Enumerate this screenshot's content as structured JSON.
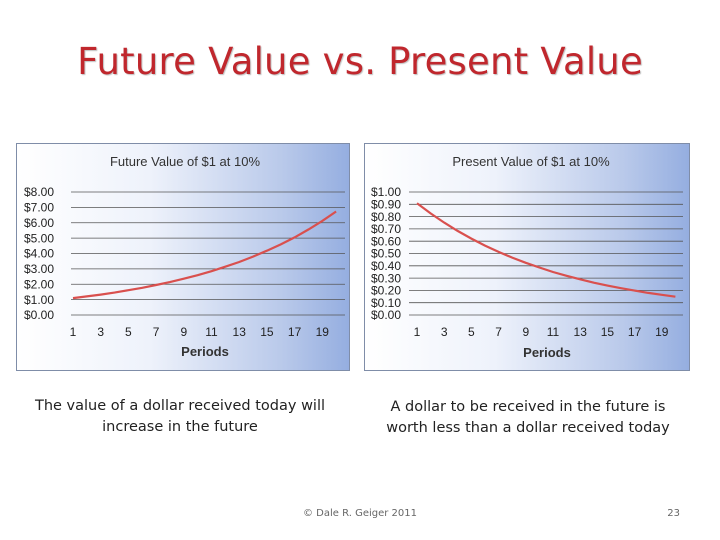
{
  "slide": {
    "title": "Future Value vs. Present Value",
    "caption_left": "The value of a dollar received today will increase in the future",
    "caption_right": "A dollar to be received in the future is worth less than a dollar received today",
    "footer": "© Dale R. Geiger 2011",
    "page_number": "23",
    "title_color": "#c0272d"
  },
  "chart_data": [
    {
      "id": "fv",
      "type": "line",
      "title": "Future Value of $1 at 10%",
      "xlabel": "Periods",
      "ylabel": "",
      "x": [
        1,
        2,
        3,
        4,
        5,
        6,
        7,
        8,
        9,
        10,
        11,
        12,
        13,
        14,
        15,
        16,
        17,
        18,
        19,
        20
      ],
      "x_ticks": [
        "1",
        "3",
        "5",
        "7",
        "9",
        "11",
        "13",
        "15",
        "17",
        "19"
      ],
      "y_ticks": [
        "$8.00",
        "$7.00",
        "$6.00",
        "$5.00",
        "$4.00",
        "$3.00",
        "$2.00",
        "$1.00",
        "$0.00"
      ],
      "ylim": [
        0,
        8
      ],
      "series": [
        {
          "values": [
            1.1,
            1.21,
            1.33,
            1.46,
            1.61,
            1.77,
            1.95,
            2.14,
            2.36,
            2.59,
            2.85,
            3.14,
            3.45,
            3.8,
            4.18,
            4.59,
            5.05,
            5.56,
            6.12,
            6.73
          ],
          "color": "#d9504e"
        }
      ],
      "grid": true,
      "legend": "none"
    },
    {
      "id": "pv",
      "type": "line",
      "title": "Present Value of $1 at 10%",
      "xlabel": "Periods",
      "ylabel": "",
      "x": [
        1,
        2,
        3,
        4,
        5,
        6,
        7,
        8,
        9,
        10,
        11,
        12,
        13,
        14,
        15,
        16,
        17,
        18,
        19,
        20
      ],
      "x_ticks": [
        "1",
        "3",
        "5",
        "7",
        "9",
        "11",
        "13",
        "15",
        "17",
        "19"
      ],
      "y_ticks": [
        "$1.00",
        "$0.90",
        "$0.80",
        "$0.70",
        "$0.60",
        "$0.50",
        "$0.40",
        "$0.30",
        "$0.20",
        "$0.10",
        "$0.00"
      ],
      "ylim": [
        0,
        1
      ],
      "series": [
        {
          "values": [
            0.909,
            0.826,
            0.751,
            0.683,
            0.621,
            0.564,
            0.513,
            0.467,
            0.424,
            0.386,
            0.35,
            0.319,
            0.29,
            0.263,
            0.239,
            0.218,
            0.198,
            0.18,
            0.164,
            0.149
          ],
          "color": "#d9504e"
        }
      ],
      "grid": true,
      "legend": "none"
    }
  ]
}
